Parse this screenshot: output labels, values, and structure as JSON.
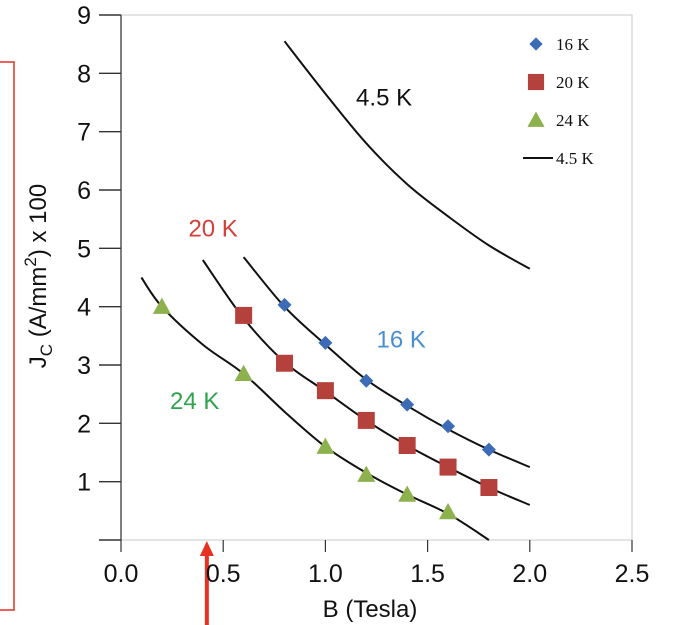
{
  "chart_data": {
    "type": "scatter",
    "xlabel": "B (Tesla)",
    "ylabel_parts": {
      "j": "J",
      "sub": "C",
      "mid": " (A/mm",
      "sup": "2",
      "tail": ") x 100"
    },
    "xlim": [
      0,
      2.5
    ],
    "ylim": [
      0,
      9
    ],
    "x_ticks": [
      "0.0",
      "0.5",
      "1.0",
      "1.5",
      "2.0",
      "2.5"
    ],
    "x_tick_values": [
      0,
      0.5,
      1.0,
      1.5,
      2.0,
      2.5
    ],
    "y_ticks": [
      "1",
      "2",
      "3",
      "4",
      "5",
      "6",
      "7",
      "8",
      "9"
    ],
    "y_tick_values": [
      1,
      2,
      3,
      4,
      5,
      6,
      7,
      8,
      9
    ],
    "gridlines": {
      "axis": "y",
      "style": "dashed",
      "colors": {
        "dark": "#2f4f8f",
        "light": "#9aa7bd"
      }
    },
    "series": [
      {
        "name": "16 K",
        "marker": "diamond",
        "color": "#3b6cb5",
        "x": [
          0.8,
          1.0,
          1.2,
          1.4,
          1.6,
          1.8
        ],
        "y": [
          4.03,
          3.38,
          2.73,
          2.32,
          1.95,
          1.55
        ]
      },
      {
        "name": "20 K",
        "marker": "square",
        "color": "#b5413d",
        "x": [
          0.6,
          0.8,
          1.0,
          1.2,
          1.4,
          1.6,
          1.8
        ],
        "y": [
          3.85,
          3.03,
          2.56,
          2.05,
          1.62,
          1.25,
          0.9
        ]
      },
      {
        "name": "24 K",
        "marker": "triangle",
        "color": "#8cb14d",
        "x": [
          0.2,
          0.6,
          1.0,
          1.2,
          1.4,
          1.6
        ],
        "y": [
          4.0,
          2.85,
          1.6,
          1.12,
          0.78,
          0.48
        ]
      },
      {
        "name": "4.5 K",
        "marker": "line",
        "color": "#111111",
        "x": [
          0.8,
          1.0,
          1.2,
          1.4,
          1.6,
          1.8,
          2.0
        ],
        "y": [
          8.55,
          7.65,
          6.8,
          6.1,
          5.55,
          5.05,
          4.65
        ]
      }
    ],
    "fit_curves": [
      {
        "name": "16 K",
        "color": "#111111",
        "x": [
          0.6,
          0.8,
          1.0,
          1.2,
          1.4,
          1.6,
          1.8,
          2.0
        ],
        "y": [
          4.85,
          4.0,
          3.35,
          2.75,
          2.3,
          1.9,
          1.55,
          1.25
        ]
      },
      {
        "name": "20 K",
        "color": "#111111",
        "x": [
          0.4,
          0.6,
          0.8,
          1.0,
          1.2,
          1.4,
          1.6,
          1.8,
          2.0
        ],
        "y": [
          4.8,
          3.8,
          3.05,
          2.55,
          2.05,
          1.62,
          1.25,
          0.9,
          0.6
        ]
      },
      {
        "name": "24 K",
        "color": "#111111",
        "x": [
          0.1,
          0.2,
          0.4,
          0.6,
          0.8,
          1.0,
          1.2,
          1.4,
          1.6,
          1.8
        ],
        "y": [
          4.5,
          4.0,
          3.35,
          2.85,
          2.2,
          1.6,
          1.15,
          0.78,
          0.45,
          0.0
        ]
      }
    ],
    "annotations": [
      {
        "text": "4.5 K",
        "x": 1.15,
        "y": 7.45,
        "color": "#111111"
      },
      {
        "text": "20 K",
        "x": 0.33,
        "y": 5.2,
        "color": "#d2413a"
      },
      {
        "text": "16 K",
        "x": 1.25,
        "y": 3.3,
        "color": "#4a90d0"
      },
      {
        "text": "24 K",
        "x": 0.24,
        "y": 2.25,
        "color": "#2fa34c"
      }
    ],
    "legend": {
      "position": "top-right",
      "entries": [
        {
          "label": "16 K",
          "marker": "diamond",
          "color": "#3b6cb5"
        },
        {
          "label": "20 K",
          "marker": "square",
          "color": "#b5413d"
        },
        {
          "label": "24 K",
          "marker": "triangle",
          "color": "#8cb14d"
        },
        {
          "label": "4.5 K",
          "marker": "line",
          "color": "#111111"
        }
      ]
    },
    "overlay_marks": {
      "bracket_color": "#e63222",
      "arrow_color": "#e63222",
      "arrow_x": 0.42
    }
  }
}
